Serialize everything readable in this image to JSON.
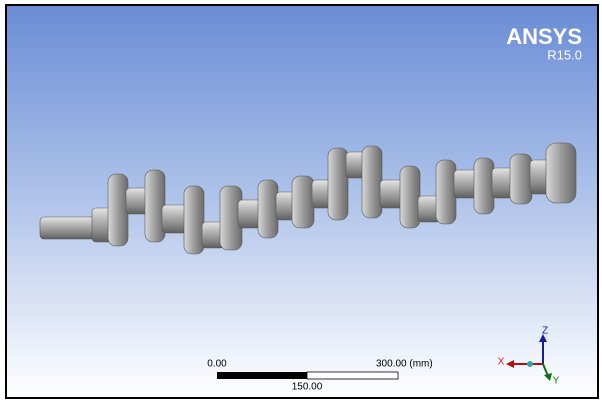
{
  "logo": {
    "name": "ANSYS",
    "version": "R15.0"
  },
  "scale_bar": {
    "start": "0.00",
    "end": "300.00 (mm)",
    "middle": "150.00"
  },
  "triad": {
    "x": "X",
    "y": "Y",
    "z": "Z"
  }
}
